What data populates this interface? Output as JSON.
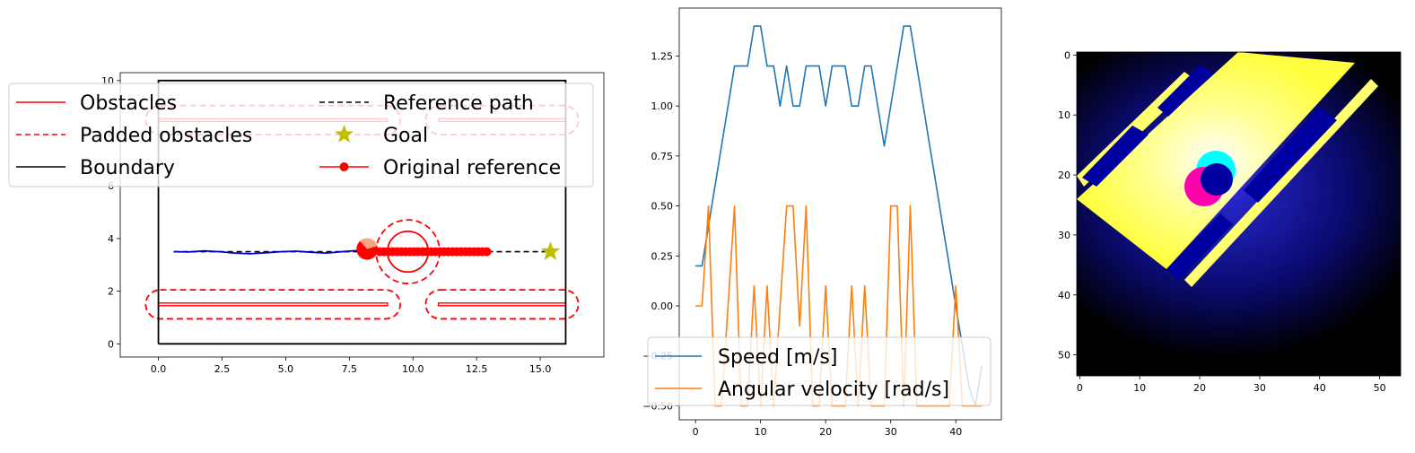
{
  "chart_data": [
    {
      "type": "line",
      "panel": "trajectory",
      "xlim": [
        -1.5,
        17.5
      ],
      "ylim": [
        -0.5,
        10.3
      ],
      "xticks": [
        0.0,
        2.5,
        5.0,
        7.5,
        10.0,
        12.5,
        15.0
      ],
      "xtick_labels": [
        "0.0",
        "2.5",
        "5.0",
        "7.5",
        "10.0",
        "12.5",
        "15.0"
      ],
      "yticks": [
        0,
        2,
        4,
        6,
        8,
        10
      ],
      "ytick_labels": [
        "0",
        "2",
        "4",
        "6",
        "8",
        "10"
      ],
      "grid": false,
      "legend_placement": "upper-center",
      "legend": [
        "Obstacles",
        "Padded obstacles",
        "Boundary",
        "Reference path",
        "Goal",
        "Original reference"
      ],
      "boundary": {
        "x": [
          0,
          16,
          16,
          0,
          0
        ],
        "y": [
          0,
          0,
          10,
          10,
          0
        ]
      },
      "obstacles": [
        {
          "x0": 0.0,
          "x1": 9.0,
          "y0": 1.45,
          "y1": 1.55
        },
        {
          "x0": 11.0,
          "x1": 16.0,
          "y0": 1.45,
          "y1": 1.55
        },
        {
          "x0": 0.0,
          "x1": 9.0,
          "y0": 8.45,
          "y1": 8.55
        },
        {
          "x0": 11.0,
          "x1": 16.0,
          "y0": 8.45,
          "y1": 8.55
        }
      ],
      "padded_obstacles": [
        {
          "x0": -0.5,
          "x1": 9.5,
          "y0": 0.95,
          "y1": 2.05
        },
        {
          "x0": 10.5,
          "x1": 16.5,
          "y0": 0.95,
          "y1": 2.05
        },
        {
          "x0": -0.5,
          "x1": 9.5,
          "y0": 7.95,
          "y1": 9.05
        },
        {
          "x0": 10.5,
          "x1": 16.5,
          "y0": 7.95,
          "y1": 9.05
        }
      ],
      "reference_path": {
        "x": [
          0.6,
          15.4
        ],
        "y": [
          3.5,
          3.5
        ]
      },
      "goal": {
        "x": 15.4,
        "y": 3.5
      },
      "original_reference": {
        "x0": 8.7,
        "x1": 12.9,
        "count": 26,
        "y": 3.5
      },
      "trajectory": {
        "x": [
          0.6,
          1.2,
          1.8,
          2.4,
          3.0,
          3.6,
          4.2,
          4.8,
          5.4,
          6.0,
          6.6,
          7.2,
          7.8,
          8.2
        ],
        "y": [
          3.5,
          3.49,
          3.53,
          3.5,
          3.45,
          3.42,
          3.46,
          3.5,
          3.52,
          3.48,
          3.45,
          3.5,
          3.54,
          3.55
        ]
      },
      "robot": {
        "x": 8.2,
        "y": 3.6,
        "r": 0.42
      },
      "moving_obstacle": {
        "x": 9.8,
        "y": 3.5,
        "r": 0.8,
        "padded_r": 1.25
      }
    },
    {
      "type": "line",
      "panel": "velocities",
      "xlim": [
        -2.5,
        47
      ],
      "ylim": [
        -0.57,
        1.49
      ],
      "xticks": [
        0,
        10,
        20,
        30,
        40
      ],
      "xtick_labels": [
        "0",
        "10",
        "20",
        "30",
        "40"
      ],
      "yticks": [
        -0.5,
        -0.25,
        0.0,
        0.25,
        0.5,
        0.75,
        1.0,
        1.25
      ],
      "ytick_labels": [
        "−0.50",
        "−0.25",
        "0.00",
        "0.25",
        "0.50",
        "0.75",
        "1.00",
        "1.25"
      ],
      "grid": false,
      "legend_placement": "lower-left",
      "series": [
        {
          "name": "Speed [m/s]",
          "color": "#1f77b4",
          "x": [
            0,
            1,
            2,
            3,
            4,
            5,
            6,
            7,
            8,
            9,
            10,
            11,
            12,
            13,
            14,
            15,
            16,
            17,
            18,
            19,
            20,
            21,
            22,
            23,
            24,
            25,
            26,
            27,
            28,
            29,
            30,
            31,
            32,
            33,
            34,
            35,
            36,
            37,
            38,
            39,
            40,
            41,
            42,
            43,
            44
          ],
          "values": [
            0.2,
            0.2,
            0.4,
            0.6,
            0.8,
            1.0,
            1.2,
            1.2,
            1.2,
            1.4,
            1.4,
            1.2,
            1.2,
            1.0,
            1.2,
            1.0,
            1.0,
            1.2,
            1.2,
            1.2,
            1.0,
            1.2,
            1.2,
            1.2,
            1.0,
            1.0,
            1.2,
            1.2,
            1.0,
            0.8,
            1.0,
            1.2,
            1.4,
            1.4,
            1.2,
            1.0,
            0.8,
            0.6,
            0.4,
            0.2,
            0.0,
            -0.2,
            -0.4,
            -0.5,
            -0.3
          ]
        },
        {
          "name": "Angular velocity [rad/s]",
          "color": "#ff7f0e",
          "x": [
            0,
            1,
            2,
            3,
            4,
            5,
            6,
            7,
            8,
            9,
            10,
            11,
            12,
            13,
            14,
            15,
            16,
            17,
            18,
            19,
            20,
            21,
            22,
            23,
            24,
            25,
            26,
            27,
            28,
            29,
            30,
            31,
            32,
            33,
            34,
            35,
            36,
            37,
            38,
            39,
            40,
            41,
            42,
            43,
            44
          ],
          "values": [
            0.0,
            0.0,
            0.5,
            -0.5,
            -0.5,
            0.0,
            0.5,
            -0.5,
            -0.5,
            0.1,
            -0.5,
            0.1,
            -0.5,
            0.0,
            0.5,
            0.5,
            -0.1,
            0.5,
            -0.5,
            -0.5,
            0.1,
            -0.5,
            -0.5,
            -0.5,
            0.1,
            -0.5,
            0.1,
            -0.5,
            -0.5,
            -0.5,
            0.5,
            0.5,
            -0.5,
            0.5,
            -0.5,
            -0.5,
            -0.5,
            -0.5,
            -0.5,
            -0.5,
            0.1,
            -0.5,
            -0.5,
            -0.5,
            -0.5
          ]
        }
      ]
    },
    {
      "type": "heatmap",
      "panel": "costmap",
      "xlim": [
        -0.5,
        53.5
      ],
      "ylim": [
        53.5,
        -0.5
      ],
      "xticks": [
        0,
        10,
        20,
        30,
        40,
        50
      ],
      "xtick_labels": [
        "0",
        "10",
        "20",
        "30",
        "40",
        "50"
      ],
      "yticks": [
        0,
        10,
        20,
        30,
        40,
        50
      ],
      "ytick_labels": [
        "0",
        "10",
        "20",
        "30",
        "40",
        "50"
      ],
      "grid": false,
      "colors": {
        "background": "#000000",
        "free_space": "#ffff40",
        "obstacle_core": "#00008b",
        "robot": "#ff00aa",
        "moving_obstacle": "#00ffff"
      }
    }
  ]
}
